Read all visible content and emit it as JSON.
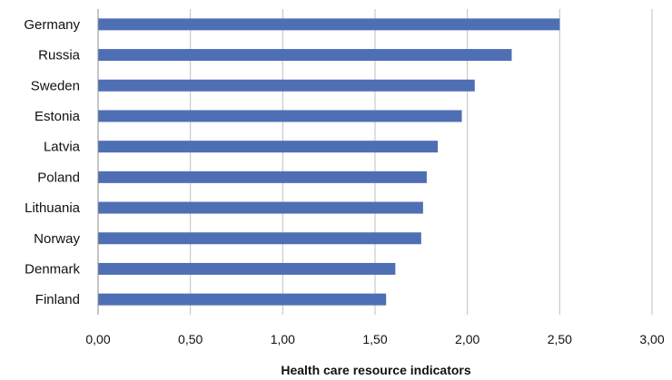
{
  "chart_data": {
    "type": "bar",
    "orientation": "horizontal",
    "categories": [
      "Germany",
      "Russia",
      "Sweden",
      "Estonia",
      "Latvia",
      "Poland",
      "Lithuania",
      "Norway",
      "Denmark",
      "Finland"
    ],
    "values": [
      2.5,
      2.24,
      2.04,
      1.97,
      1.84,
      1.78,
      1.76,
      1.75,
      1.61,
      1.56
    ],
    "xlabel": "Health care resource indicators",
    "ylabel": "",
    "xlim": [
      0,
      3
    ],
    "xticks": [
      "0,00",
      "0,50",
      "1,00",
      "1,50",
      "2,00",
      "2,50",
      "3,00"
    ],
    "grid": true,
    "bar_color": "#4f6fb5"
  }
}
